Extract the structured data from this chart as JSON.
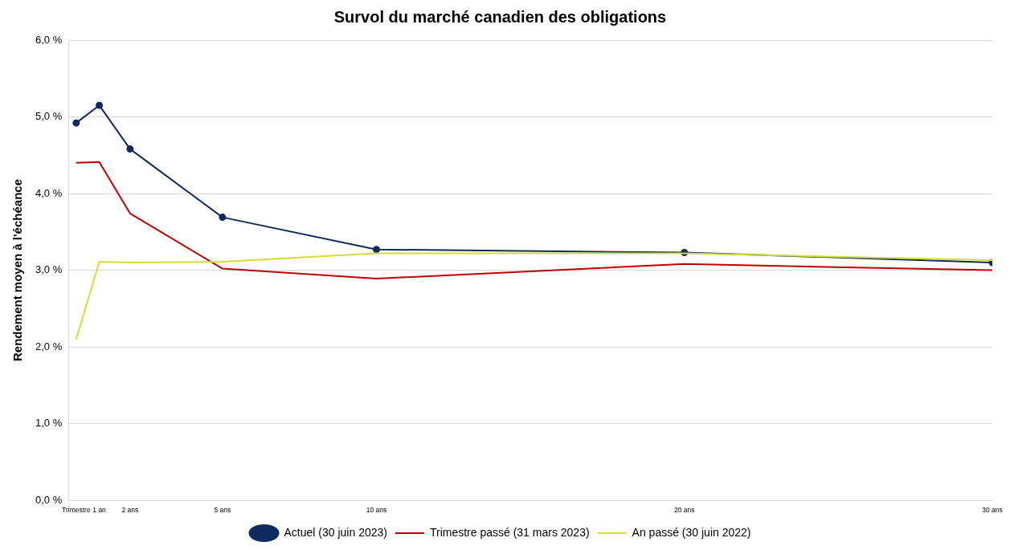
{
  "chart_data": {
    "type": "line",
    "title": "Survol du marché canadien des obligations",
    "ylabel": "Rendement moyen à l'échéance",
    "x": [
      0.25,
      1,
      2,
      5,
      10,
      20,
      30
    ],
    "xlim": [
      0,
      30
    ],
    "xticks": [
      {
        "value": 0.25,
        "label": "Trimestre"
      },
      {
        "value": 1,
        "label": "1 an"
      },
      {
        "value": 2,
        "label": "2 ans"
      },
      {
        "value": 5,
        "label": "5 ans"
      },
      {
        "value": 10,
        "label": "10 ans"
      },
      {
        "value": 20,
        "label": "20 ans"
      },
      {
        "value": 30,
        "label": "30 ans"
      }
    ],
    "ylim": [
      0,
      6
    ],
    "yticks": [
      {
        "value": 0,
        "label": "0,0 %"
      },
      {
        "value": 1,
        "label": "1,0 %"
      },
      {
        "value": 2,
        "label": "2,0 %"
      },
      {
        "value": 3,
        "label": "3,0 %"
      },
      {
        "value": 4,
        "label": "4,0 %"
      },
      {
        "value": 5,
        "label": "5,0 %"
      },
      {
        "value": 6,
        "label": "6,0 %"
      }
    ],
    "grid": "y",
    "legend": "bottom",
    "line_style": "solid",
    "series": [
      {
        "name": "Actuel (30 juin 2023)",
        "color": "#0f2a5e",
        "marker": "circle",
        "values": [
          4.92,
          5.15,
          4.58,
          3.69,
          3.27,
          3.23,
          3.1
        ]
      },
      {
        "name": "Trimestre passé (31 mars 2023)",
        "color": "#c00000",
        "marker": "none",
        "values": [
          4.4,
          4.41,
          3.74,
          3.02,
          2.89,
          3.08,
          3.0
        ]
      },
      {
        "name": "An passé (30 juin 2022)",
        "color": "#d4dc3c",
        "marker": "none",
        "values": [
          2.1,
          3.11,
          3.1,
          3.11,
          3.22,
          3.22,
          3.13
        ]
      }
    ]
  }
}
